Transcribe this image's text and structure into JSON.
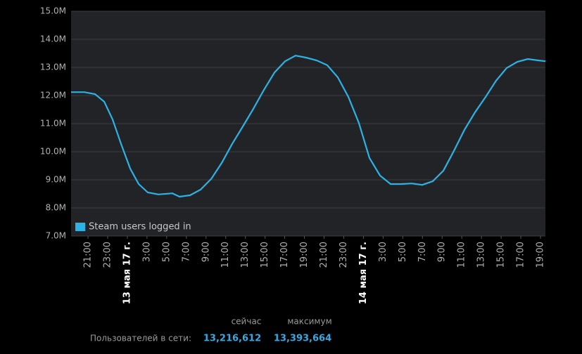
{
  "chart_data": {
    "type": "line",
    "x": [
      19.28,
      20.64,
      21.72,
      22.65,
      23.5,
      24.36,
      25.29,
      26.15,
      27.08,
      28.15,
      29.58,
      30.3,
      31.37,
      32.44,
      33.52,
      34.59,
      35.66,
      36.74,
      37.81,
      38.88,
      39.96,
      41.03,
      42.1,
      43.17,
      44.25,
      45.32,
      46.39,
      47.47,
      48.54,
      49.61,
      50.69,
      51.76,
      52.83,
      53.9,
      54.98,
      56.05,
      57.12,
      58.2,
      59.27,
      60.34,
      61.42,
      62.49,
      63.56,
      64.64,
      65.71,
      66.78,
      67.5
    ],
    "series": [
      {
        "name": "Steam users logged in",
        "color": "#2bb3e6",
        "values": [
          12.12,
          12.12,
          12.05,
          11.78,
          11.15,
          10.28,
          9.4,
          8.85,
          8.55,
          8.48,
          8.52,
          8.4,
          8.45,
          8.65,
          9.03,
          9.6,
          10.28,
          10.9,
          11.53,
          12.2,
          12.82,
          13.22,
          13.42,
          13.35,
          13.25,
          13.08,
          12.65,
          11.95,
          11.02,
          9.78,
          9.15,
          8.85,
          8.85,
          8.87,
          8.82,
          8.95,
          9.32,
          10.03,
          10.78,
          11.4,
          11.95,
          12.53,
          12.98,
          13.2,
          13.3,
          13.25,
          13.22
        ]
      }
    ],
    "xlim": [
      19.28,
      67.5
    ],
    "xticks": [
      {
        "value": 21,
        "label": "21:00"
      },
      {
        "value": 23,
        "label": "23:00"
      },
      {
        "value": 25,
        "label": "13 мая 17 г."
      },
      {
        "value": 27,
        "label": "3:00"
      },
      {
        "value": 29,
        "label": "5:00"
      },
      {
        "value": 31,
        "label": "7:00"
      },
      {
        "value": 33,
        "label": "9:00"
      },
      {
        "value": 35,
        "label": "11:00"
      },
      {
        "value": 37,
        "label": "13:00"
      },
      {
        "value": 39,
        "label": "15:00"
      },
      {
        "value": 41,
        "label": "17:00"
      },
      {
        "value": 43,
        "label": "19:00"
      },
      {
        "value": 45,
        "label": "21:00"
      },
      {
        "value": 47,
        "label": "23:00"
      },
      {
        "value": 49,
        "label": "14 мая 17 г."
      },
      {
        "value": 51,
        "label": "3:00"
      },
      {
        "value": 53,
        "label": "5:00"
      },
      {
        "value": 55,
        "label": "7:00"
      },
      {
        "value": 57,
        "label": "9:00"
      },
      {
        "value": 59,
        "label": "11:00"
      },
      {
        "value": 61,
        "label": "13:00"
      },
      {
        "value": 63,
        "label": "15:00"
      },
      {
        "value": 65,
        "label": "17:00"
      },
      {
        "value": 67,
        "label": "19:00"
      }
    ],
    "ylim": [
      7,
      15
    ],
    "yticks": [
      {
        "value": 7,
        "label": "7.0M"
      },
      {
        "value": 8,
        "label": "8.0M"
      },
      {
        "value": 9,
        "label": "9.0M"
      },
      {
        "value": 10,
        "label": "10.0M"
      },
      {
        "value": 11,
        "label": "11.0M"
      },
      {
        "value": 12,
        "label": "12.0M"
      },
      {
        "value": 13,
        "label": "13.0M"
      },
      {
        "value": 14,
        "label": "14.0M"
      },
      {
        "value": 15,
        "label": "15.0M"
      }
    ],
    "grid": true,
    "legend": "lower left"
  },
  "stats": {
    "now_header": "сейчас",
    "max_header": "максимум",
    "label": "Пользователей в сети:",
    "now": "13,216,612",
    "max": "13,393,664"
  }
}
